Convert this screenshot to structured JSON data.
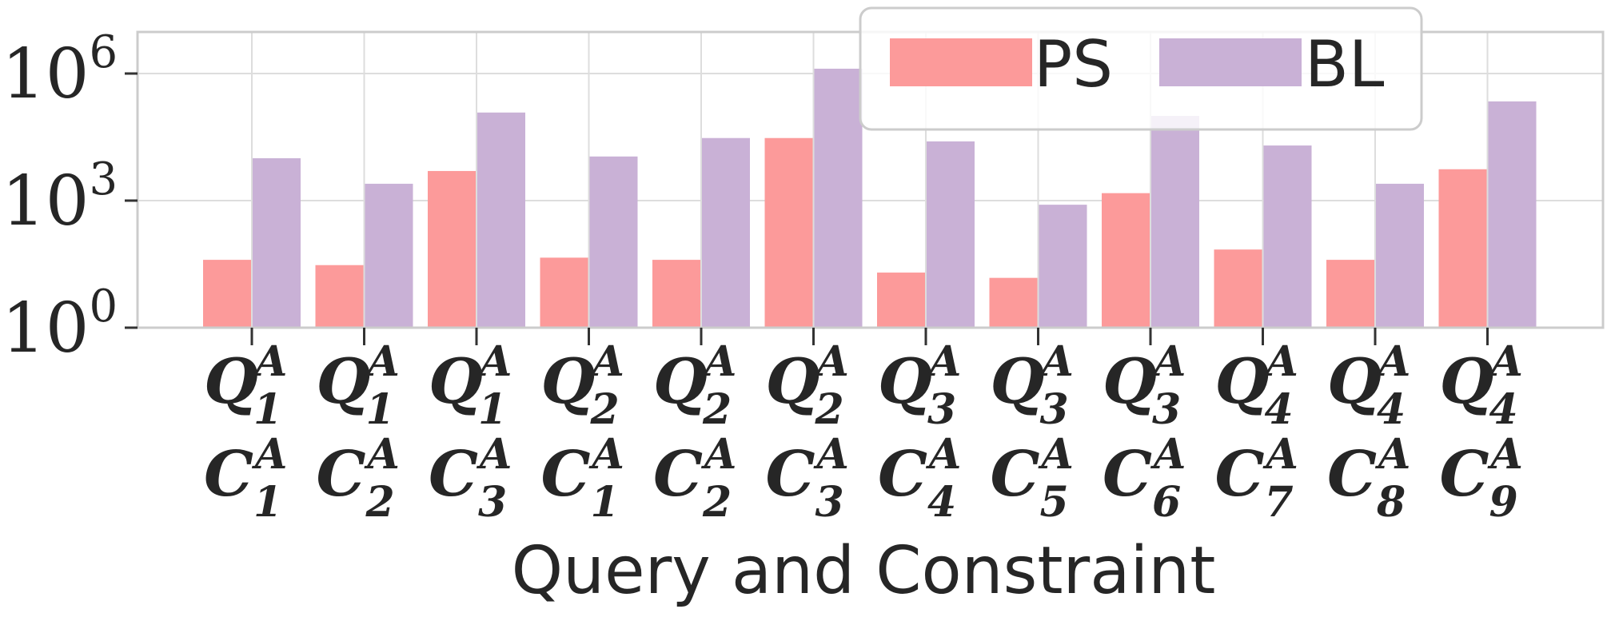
{
  "chart_data": {
    "type": "bar",
    "yscale": "log",
    "ylim": [
      1,
      10000000
    ],
    "yticks": [
      {
        "value": 1,
        "base": "10",
        "exp": "0"
      },
      {
        "value": 1000,
        "base": "10",
        "exp": "3"
      },
      {
        "value": 1000000,
        "base": "10",
        "exp": "6"
      }
    ],
    "xlabel": "Query and Constraint",
    "ylabel": "",
    "grid": true,
    "legend_position": "top-right",
    "categories": [
      {
        "q_main": "Q",
        "q_sup": "A",
        "q_sub": "1",
        "c_main": "C",
        "c_sup": "A",
        "c_sub": "1"
      },
      {
        "q_main": "Q",
        "q_sup": "A",
        "q_sub": "1",
        "c_main": "C",
        "c_sup": "A",
        "c_sub": "2"
      },
      {
        "q_main": "Q",
        "q_sup": "A",
        "q_sub": "1",
        "c_main": "C",
        "c_sup": "A",
        "c_sub": "3"
      },
      {
        "q_main": "Q",
        "q_sup": "A",
        "q_sub": "2",
        "c_main": "C",
        "c_sup": "A",
        "c_sub": "1"
      },
      {
        "q_main": "Q",
        "q_sup": "A",
        "q_sub": "2",
        "c_main": "C",
        "c_sup": "A",
        "c_sub": "2"
      },
      {
        "q_main": "Q",
        "q_sup": "A",
        "q_sub": "2",
        "c_main": "C",
        "c_sup": "A",
        "c_sub": "3"
      },
      {
        "q_main": "Q",
        "q_sup": "A",
        "q_sub": "3",
        "c_main": "C",
        "c_sup": "A",
        "c_sub": "4"
      },
      {
        "q_main": "Q",
        "q_sup": "A",
        "q_sub": "3",
        "c_main": "C",
        "c_sup": "A",
        "c_sub": "5"
      },
      {
        "q_main": "Q",
        "q_sup": "A",
        "q_sub": "3",
        "c_main": "C",
        "c_sup": "A",
        "c_sub": "6"
      },
      {
        "q_main": "Q",
        "q_sup": "A",
        "q_sub": "4",
        "c_main": "C",
        "c_sup": "A",
        "c_sub": "7"
      },
      {
        "q_main": "Q",
        "q_sup": "A",
        "q_sub": "4",
        "c_main": "C",
        "c_sup": "A",
        "c_sub": "8"
      },
      {
        "q_main": "Q",
        "q_sup": "A",
        "q_sub": "4",
        "c_main": "C",
        "c_sup": "A",
        "c_sub": "9"
      }
    ],
    "series": [
      {
        "name": "PS",
        "color": "#fc9a9a",
        "values": [
          40,
          30,
          5000,
          45,
          40,
          30000,
          20,
          15,
          1500,
          70,
          40,
          5500
        ]
      },
      {
        "name": "BL",
        "color": "#c9b1d6",
        "values": [
          10000,
          2500,
          120000,
          11000,
          30000,
          1300000,
          25000,
          800,
          100000,
          20000,
          2500,
          220000
        ]
      }
    ]
  }
}
